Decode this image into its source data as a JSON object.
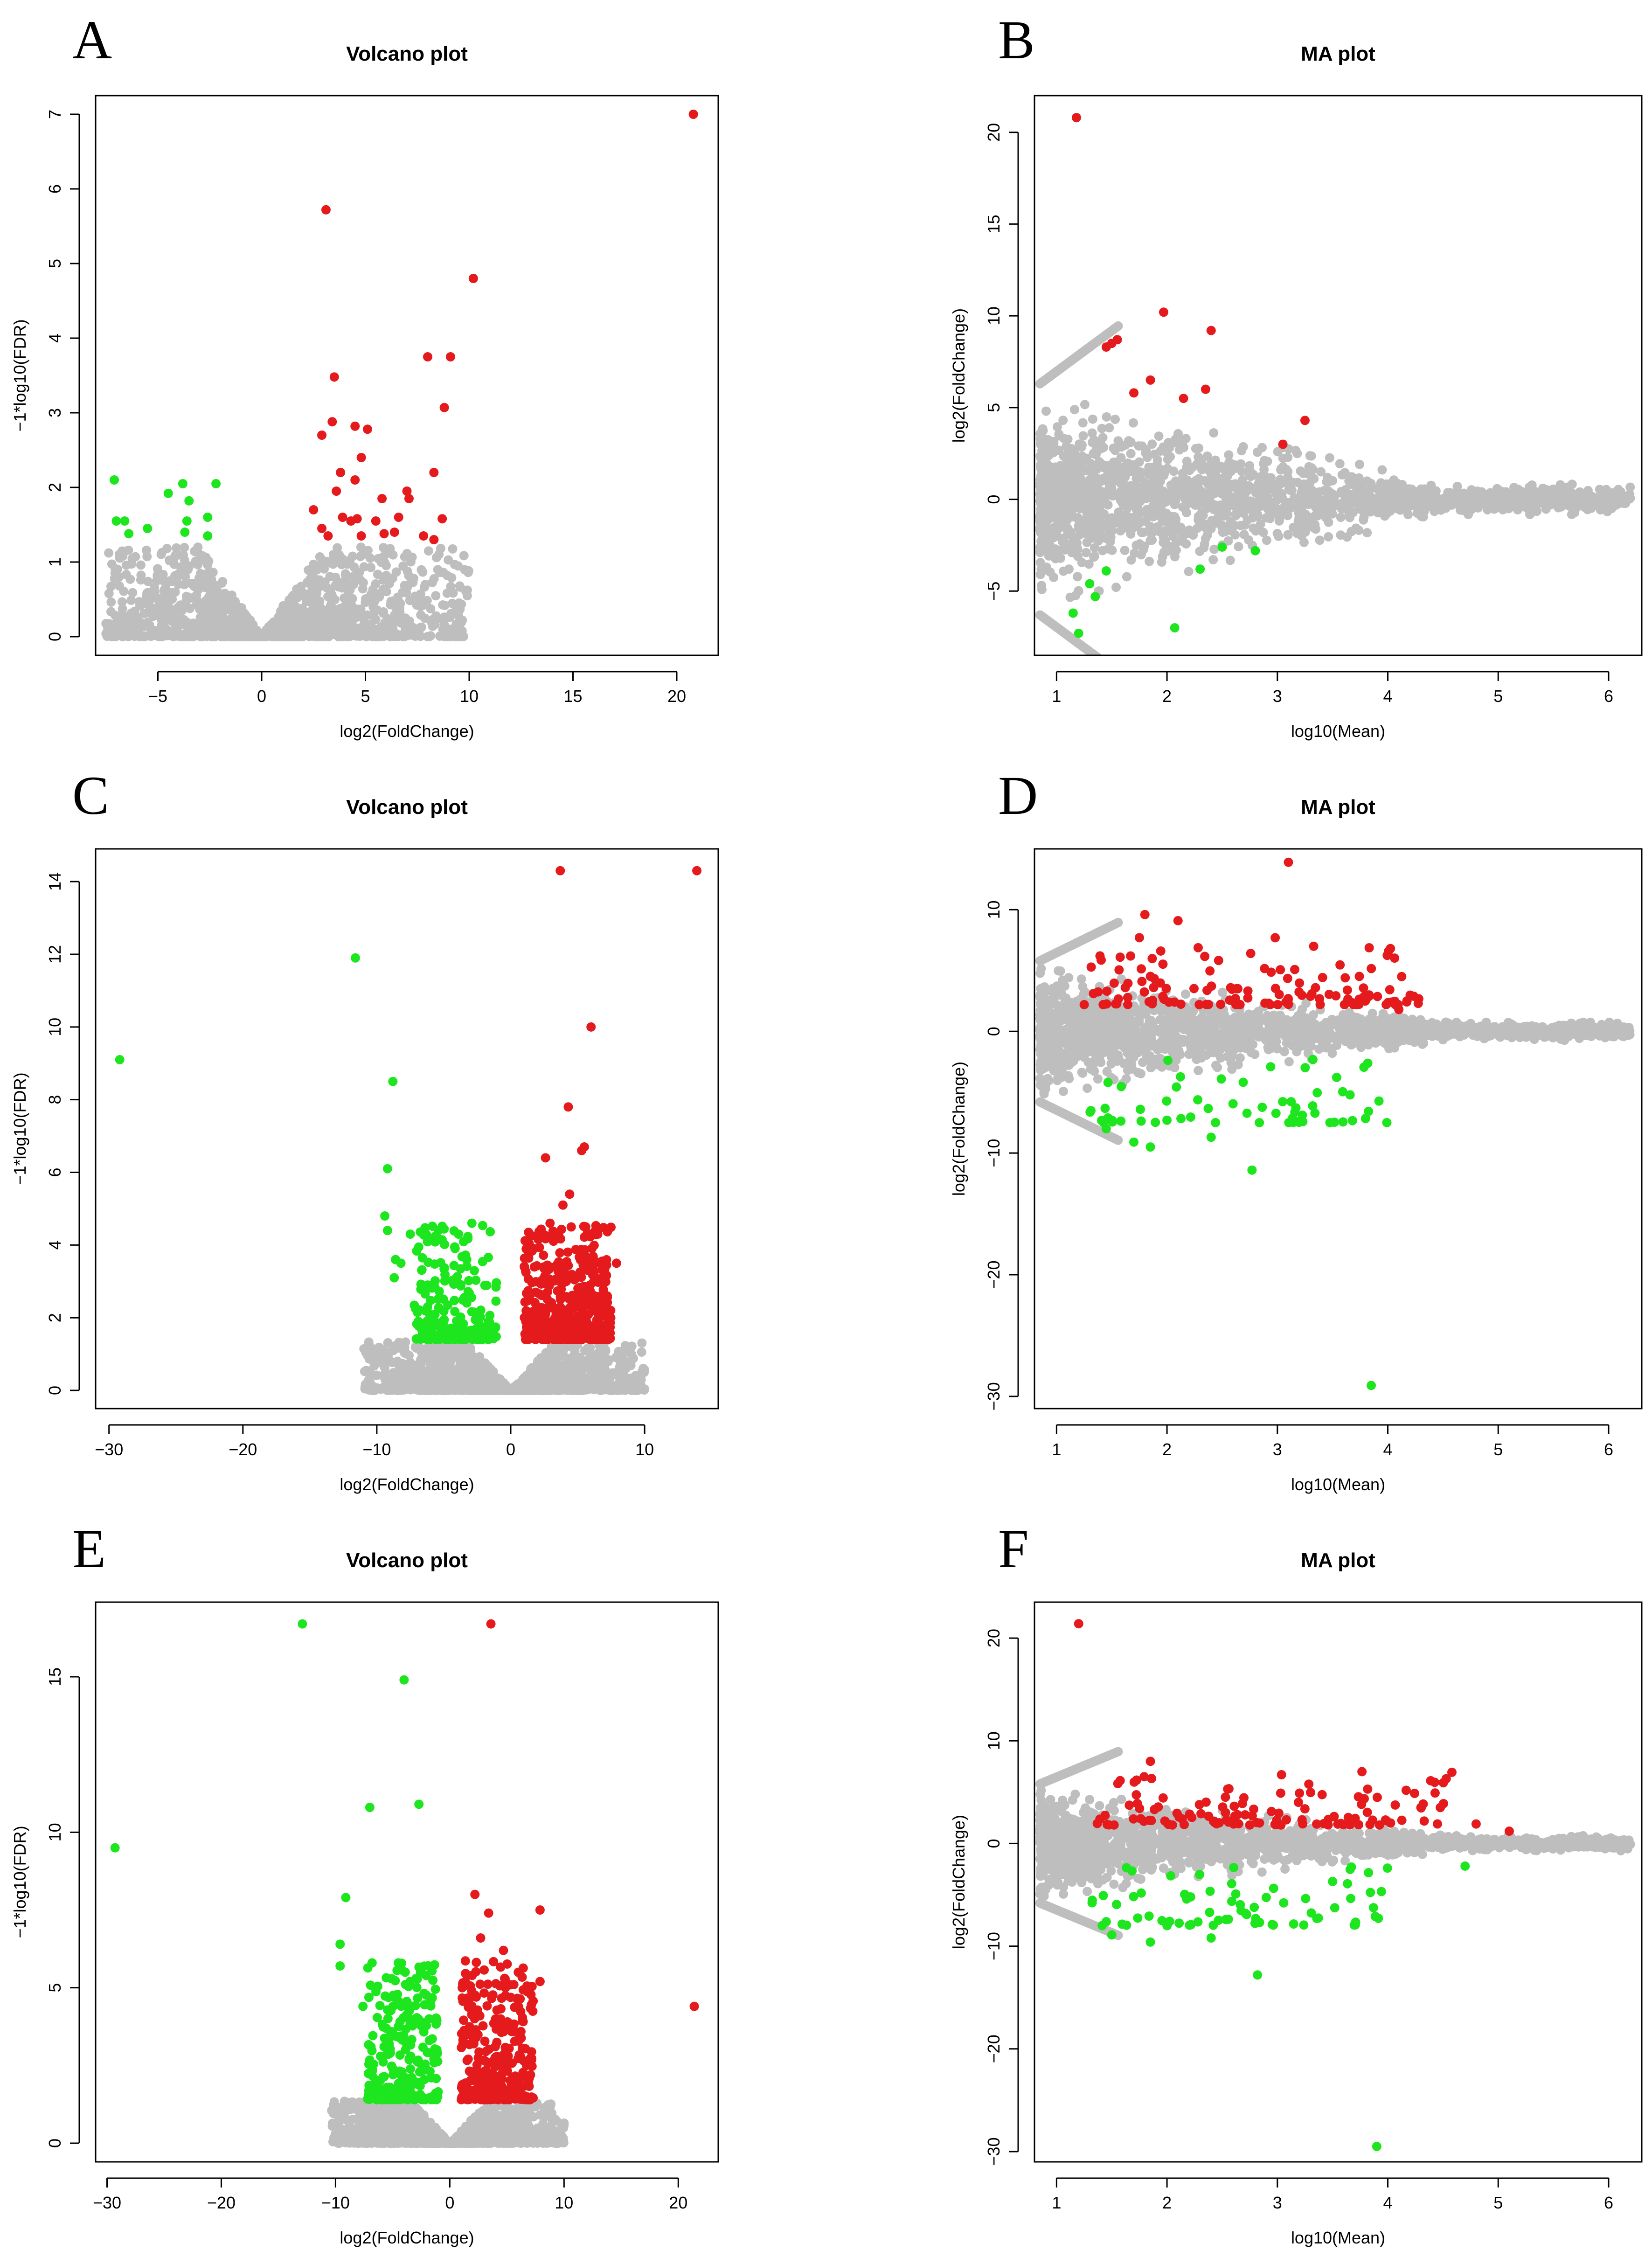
{
  "colors": {
    "up": "#e41a1c",
    "down": "#1ee61e",
    "ns": "#bebebe"
  },
  "chart_data": [
    {
      "panel": "A",
      "type": "scatter",
      "title": "Volcano plot",
      "xlabel": "log2(FoldChange)",
      "ylabel": "−1*log10(FDR)",
      "xlim": [
        -8,
        22
      ],
      "ylim": [
        -0.25,
        7.25
      ],
      "xticks": [
        -5,
        0,
        5,
        10,
        15,
        20
      ],
      "yticks": [
        0,
        1,
        2,
        3,
        4,
        5,
        6,
        7
      ],
      "ns_cloud": {
        "kind": "volcano",
        "x_range": [
          -7.5,
          10
        ],
        "y_max": 1.2
      },
      "series": [
        {
          "name": "up",
          "points": [
            [
              20.8,
              7.0
            ],
            [
              3.1,
              5.72
            ],
            [
              10.2,
              4.8
            ],
            [
              8,
              3.75
            ],
            [
              9.1,
              3.75
            ],
            [
              3.5,
              3.48
            ],
            [
              8.8,
              3.07
            ],
            [
              4.5,
              2.82
            ],
            [
              5.1,
              2.78
            ],
            [
              3.4,
              2.88
            ],
            [
              2.9,
              2.7
            ],
            [
              4.8,
              2.4
            ],
            [
              3.8,
              2.2
            ],
            [
              8.3,
              2.2
            ],
            [
              4.5,
              2.1
            ],
            [
              3.6,
              1.95
            ],
            [
              7,
              1.95
            ],
            [
              7.1,
              1.85
            ],
            [
              5.8,
              1.85
            ],
            [
              2.5,
              1.7
            ],
            [
              3.9,
              1.6
            ],
            [
              4.3,
              1.55
            ],
            [
              4.6,
              1.58
            ],
            [
              5.5,
              1.55
            ],
            [
              6.6,
              1.6
            ],
            [
              8.7,
              1.58
            ],
            [
              3.2,
              1.35
            ],
            [
              4.8,
              1.35
            ],
            [
              6.4,
              1.4
            ],
            [
              7.8,
              1.35
            ],
            [
              8.3,
              1.3
            ],
            [
              2.9,
              1.45
            ],
            [
              5.9,
              1.38
            ]
          ]
        },
        {
          "name": "down",
          "points": [
            [
              -7.1,
              2.1
            ],
            [
              -3.8,
              2.05
            ],
            [
              -2.2,
              2.05
            ],
            [
              -4.5,
              1.92
            ],
            [
              -3.5,
              1.82
            ],
            [
              -7,
              1.55
            ],
            [
              -6.6,
              1.55
            ],
            [
              -3.6,
              1.55
            ],
            [
              -2.6,
              1.6
            ],
            [
              -5.5,
              1.45
            ],
            [
              -3.7,
              1.4
            ],
            [
              -2.6,
              1.35
            ],
            [
              -6.4,
              1.38
            ]
          ]
        }
      ]
    },
    {
      "panel": "B",
      "type": "scatter",
      "title": "MA plot",
      "xlabel": "log10(Mean)",
      "ylabel": "log2(FoldChange)",
      "xlim": [
        0.8,
        6.3
      ],
      "ylim": [
        -8.5,
        22
      ],
      "xticks": [
        1,
        2,
        3,
        4,
        5,
        6
      ],
      "yticks": [
        -5,
        0,
        5,
        10,
        15,
        20
      ],
      "ns_cloud": {
        "kind": "ma",
        "x_range": [
          0.85,
          6.2
        ],
        "spread_at_low": 5.5,
        "stripe_max": 6.5
      },
      "series": [
        {
          "name": "up",
          "points": [
            [
              1.18,
              20.8
            ],
            [
              1.97,
              10.2
            ],
            [
              2.4,
              9.2
            ],
            [
              1.55,
              8.7
            ],
            [
              1.5,
              8.5
            ],
            [
              1.45,
              8.3
            ],
            [
              1.85,
              6.5
            ],
            [
              2.35,
              6.0
            ],
            [
              3.25,
              4.3
            ],
            [
              1.7,
              5.8
            ],
            [
              2.15,
              5.5
            ],
            [
              3.05,
              3.0
            ]
          ]
        },
        {
          "name": "down",
          "points": [
            [
              1.2,
              -7.3
            ],
            [
              2.07,
              -7.0
            ],
            [
              1.15,
              -6.2
            ],
            [
              1.35,
              -5.3
            ],
            [
              2.3,
              -3.8
            ],
            [
              2.8,
              -2.8
            ],
            [
              2.5,
              -2.6
            ],
            [
              1.3,
              -4.6
            ],
            [
              1.45,
              -3.9
            ]
          ]
        }
      ]
    },
    {
      "panel": "C",
      "type": "scatter",
      "title": "Volcano plot",
      "xlabel": "log2(FoldChange)",
      "ylabel": "−1*log10(FDR)",
      "xlim": [
        -31,
        15.5
      ],
      "ylim": [
        -0.5,
        14.9
      ],
      "xticks": [
        -30,
        -20,
        -10,
        0,
        10
      ],
      "yticks": [
        0,
        2,
        4,
        6,
        8,
        10,
        12,
        14
      ],
      "ns_cloud": {
        "kind": "volcano",
        "x_range": [
          -11,
          10
        ],
        "y_max": 1.35
      },
      "dense_clusters": [
        {
          "name": "down",
          "x_range": [
            -7.2,
            -1
          ],
          "y_range": [
            1.4,
            4.6
          ],
          "count": 200
        },
        {
          "name": "up",
          "x_range": [
            1,
            7.5
          ],
          "y_range": [
            1.4,
            4.6
          ],
          "count": 520
        }
      ],
      "series": [
        {
          "name": "up",
          "points": [
            [
              3.7,
              14.3
            ],
            [
              13.9,
              14.3
            ],
            [
              6,
              10
            ],
            [
              4.3,
              7.8
            ],
            [
              5.3,
              6.6
            ],
            [
              5.5,
              6.7
            ],
            [
              2.6,
              6.4
            ],
            [
              4.4,
              5.4
            ],
            [
              3.9,
              5.1
            ],
            [
              7.9,
              3.5
            ],
            [
              6.5,
              4.3
            ],
            [
              5.6,
              4.5
            ]
          ]
        },
        {
          "name": "down",
          "points": [
            [
              -29.2,
              9.1
            ],
            [
              -11.6,
              11.9
            ],
            [
              -8.8,
              8.5
            ],
            [
              -9.2,
              6.1
            ],
            [
              -9.4,
              4.8
            ],
            [
              -9.2,
              4.4
            ],
            [
              -7.5,
              4.3
            ],
            [
              -8.6,
              3.6
            ],
            [
              -8.2,
              3.5
            ],
            [
              -8.7,
              3.1
            ],
            [
              -5.4,
              4.4
            ],
            [
              -2.9,
              4.6
            ],
            [
              -3.9,
              4.3
            ]
          ]
        }
      ]
    },
    {
      "panel": "D",
      "type": "scatter",
      "title": "MA plot",
      "xlabel": "log10(Mean)",
      "ylabel": "log2(FoldChange)",
      "xlim": [
        0.8,
        6.3
      ],
      "ylim": [
        -31,
        15
      ],
      "xticks": [
        1,
        2,
        3,
        4,
        5,
        6
      ],
      "yticks": [
        -30,
        -20,
        -10,
        0,
        10
      ],
      "ns_cloud": {
        "kind": "ma",
        "x_range": [
          0.85,
          6.2
        ],
        "spread_at_low": 5.0,
        "stripe_max": 6.0
      },
      "dense_clusters": [
        {
          "name": "up",
          "x_range": [
            1.25,
            4.3
          ],
          "y_range": [
            2.2,
            7
          ],
          "count": 130
        },
        {
          "name": "down",
          "x_range": [
            1.25,
            4.0
          ],
          "y_range": [
            -7.5,
            -2.2
          ],
          "count": 60
        }
      ],
      "series": [
        {
          "name": "up",
          "points": [
            [
              3.1,
              13.9
            ],
            [
              1.8,
              9.6
            ],
            [
              2.1,
              9.1
            ],
            [
              2.98,
              7.7
            ],
            [
              1.75,
              7.7
            ],
            [
              4.1,
              1.8
            ]
          ]
        },
        {
          "name": "down",
          "points": [
            [
              3.85,
              -29.1
            ],
            [
              2.77,
              -11.4
            ],
            [
              2.4,
              -8.7
            ],
            [
              1.85,
              -9.5
            ],
            [
              1.7,
              -9.1
            ],
            [
              1.45,
              -8.0
            ],
            [
              2.0,
              -7.3
            ]
          ]
        }
      ]
    },
    {
      "panel": "E",
      "type": "scatter",
      "title": "Volcano plot",
      "xlabel": "log2(FoldChange)",
      "ylabel": "−1*log10(FDR)",
      "xlim": [
        -31,
        23.5
      ],
      "ylim": [
        -0.6,
        17.4
      ],
      "xticks": [
        -30,
        -20,
        -10,
        0,
        10,
        20
      ],
      "yticks": [
        0,
        5,
        10,
        15
      ],
      "ns_cloud": {
        "kind": "volcano",
        "x_range": [
          -10.5,
          10
        ],
        "y_max": 1.35
      },
      "dense_clusters": [
        {
          "name": "down",
          "x_range": [
            -7.2,
            -1
          ],
          "y_range": [
            1.4,
            5.8
          ],
          "count": 260
        },
        {
          "name": "up",
          "x_range": [
            1,
            7.3
          ],
          "y_range": [
            1.4,
            6.0
          ],
          "count": 320
        }
      ],
      "series": [
        {
          "name": "up",
          "points": [
            [
              3.6,
              16.7
            ],
            [
              21.4,
              4.4
            ],
            [
              2.2,
              8
            ],
            [
              3.4,
              7.4
            ],
            [
              7.9,
              7.5
            ],
            [
              4.7,
              6.2
            ],
            [
              7.9,
              5.2
            ],
            [
              2.7,
              6.6
            ],
            [
              4.8,
              5.3
            ]
          ]
        },
        {
          "name": "down",
          "points": [
            [
              -29.3,
              9.5
            ],
            [
              -12.9,
              16.7
            ],
            [
              -4,
              14.9
            ],
            [
              -7,
              10.8
            ],
            [
              -2.7,
              10.9
            ],
            [
              -9.1,
              7.9
            ],
            [
              -9.6,
              6.4
            ],
            [
              -9.6,
              5.7
            ],
            [
              -6.8,
              5.8
            ],
            [
              -4.5,
              5.8
            ],
            [
              -3.9,
              5.5
            ],
            [
              -7.6,
              4.4
            ]
          ]
        }
      ]
    },
    {
      "panel": "F",
      "type": "scatter",
      "title": "MA plot",
      "xlabel": "log10(Mean)",
      "ylabel": "log2(FoldChange)",
      "xlim": [
        0.8,
        6.3
      ],
      "ylim": [
        -31,
        23.5
      ],
      "xticks": [
        1,
        2,
        3,
        4,
        5,
        6
      ],
      "yticks": [
        -30,
        -20,
        -10,
        0,
        10,
        20
      ],
      "ns_cloud": {
        "kind": "ma",
        "x_range": [
          0.85,
          6.2
        ],
        "spread_at_low": 5.0,
        "stripe_max": 6.0
      },
      "dense_clusters": [
        {
          "name": "up",
          "x_range": [
            1.3,
            4.6
          ],
          "y_range": [
            1.8,
            7
          ],
          "count": 120
        },
        {
          "name": "down",
          "x_range": [
            1.3,
            4.0
          ],
          "y_range": [
            -8,
            -2
          ],
          "count": 70
        }
      ],
      "series": [
        {
          "name": "up",
          "points": [
            [
              1.2,
              21.4
            ],
            [
              1.85,
              8.0
            ],
            [
              2.55,
              5.3
            ],
            [
              4.3,
              3.5
            ],
            [
              4.8,
              1.9
            ],
            [
              5.1,
              1.2
            ],
            [
              3.2,
              4.9
            ]
          ]
        },
        {
          "name": "down",
          "points": [
            [
              3.9,
              -29.5
            ],
            [
              2.82,
              -12.8
            ],
            [
              2.4,
              -9.2
            ],
            [
              1.85,
              -9.6
            ],
            [
              1.5,
              -8.9
            ],
            [
              4.7,
              -2.2
            ],
            [
              3.5,
              -3.7
            ]
          ]
        }
      ]
    }
  ]
}
